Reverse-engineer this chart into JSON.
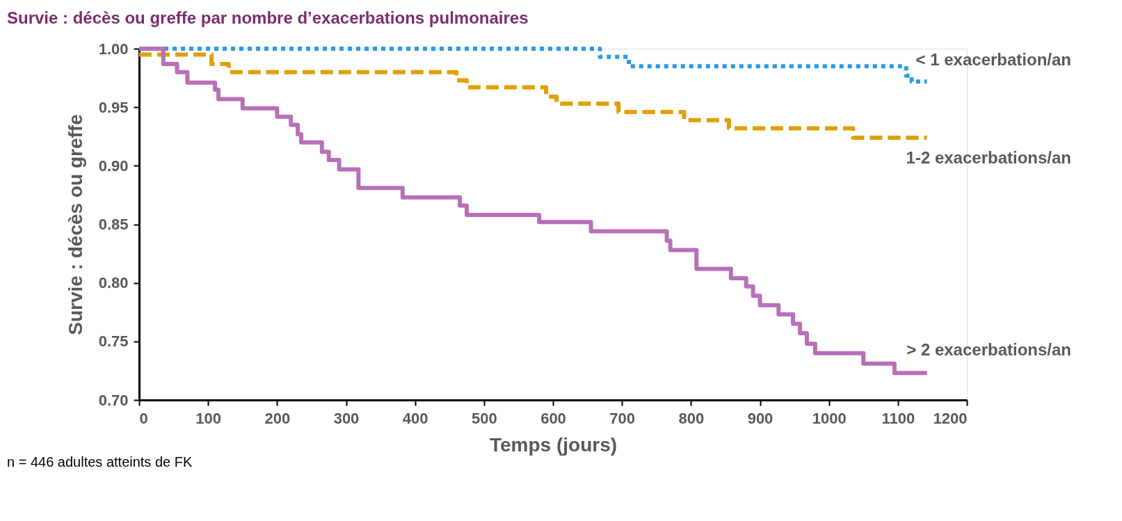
{
  "chart_data": {
    "type": "step",
    "title": "Survie : décès ou greffe par nombre d’exacerbations pulmonaires",
    "xlabel": "Temps (jours)",
    "ylabel": "Survie : décès ou greffe",
    "xlim": [
      0,
      1200
    ],
    "xticks": [
      0,
      100,
      200,
      300,
      400,
      500,
      600,
      700,
      800,
      900,
      1000,
      1100,
      1200
    ],
    "ylim": [
      0.7,
      1.0
    ],
    "yticks": [
      {
        "value": 0.7,
        "label": "0.70"
      },
      {
        "value": 0.75,
        "label": "0.75"
      },
      {
        "value": 0.8,
        "label": "0.80"
      },
      {
        "value": 0.85,
        "label": "0.85"
      },
      {
        "value": 0.9,
        "label": "0.90"
      },
      {
        "value": 0.95,
        "label": "0.95"
      },
      {
        "value": 1.0,
        "label": "1.00"
      }
    ],
    "grid": false,
    "legend": false,
    "annotations": [
      "n = 446 adultes atteints de FK"
    ],
    "series": [
      {
        "name": "< 1 exacerbation/an",
        "color": "#2b9be6",
        "line_style": "dotted",
        "x": [
          0,
          668,
          710,
          1112,
          1120,
          1142
        ],
        "values": [
          1.0,
          0.993,
          0.985,
          0.977,
          0.972,
          0.972
        ]
      },
      {
        "name": "1-2 exacerbations/an",
        "color": "#e0a000",
        "line_style": "dashed",
        "x": [
          0,
          105,
          130,
          460,
          475,
          590,
          605,
          695,
          790,
          855,
          1035,
          1142
        ],
        "values": [
          0.995,
          0.987,
          0.98,
          0.973,
          0.967,
          0.959,
          0.953,
          0.946,
          0.939,
          0.932,
          0.924,
          0.924
        ]
      },
      {
        "name": "> 2 exacerbations/an",
        "color": "#b86fb8",
        "line_style": "solid",
        "x": [
          0,
          35,
          55,
          70,
          110,
          115,
          150,
          200,
          220,
          230,
          235,
          265,
          275,
          290,
          318,
          382,
          465,
          475,
          580,
          655,
          765,
          770,
          808,
          858,
          880,
          890,
          900,
          927,
          948,
          958,
          968,
          980,
          1050,
          1095,
          1142
        ],
        "values": [
          1.0,
          0.987,
          0.98,
          0.971,
          0.965,
          0.957,
          0.949,
          0.942,
          0.935,
          0.927,
          0.92,
          0.912,
          0.905,
          0.897,
          0.881,
          0.873,
          0.866,
          0.858,
          0.852,
          0.844,
          0.836,
          0.828,
          0.812,
          0.804,
          0.797,
          0.789,
          0.781,
          0.773,
          0.765,
          0.757,
          0.748,
          0.74,
          0.731,
          0.723,
          0.723
        ]
      }
    ]
  }
}
